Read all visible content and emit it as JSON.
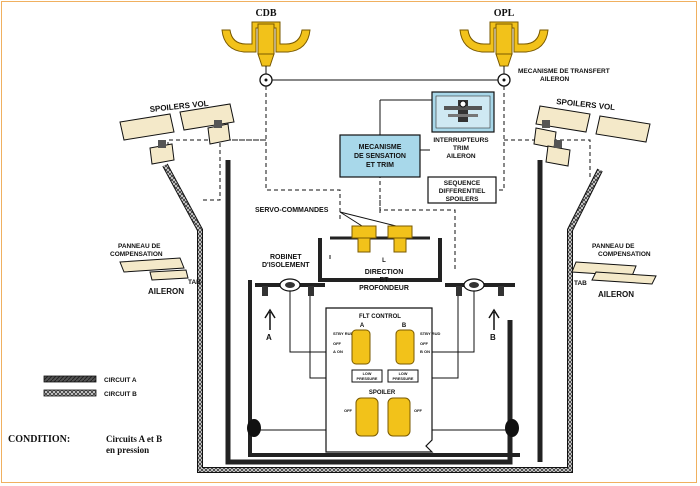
{
  "labels": {
    "cdb": "CDB",
    "opl": "OPL",
    "mecanisme_transfert_1": "MECANISME DE TRANSFERT",
    "mecanisme_transfert_2": "AILERON",
    "spoilers_vol_left": "SPOILERS VOL",
    "spoilers_vol_right": "SPOILERS VOL",
    "sensation_1": "MECANISME",
    "sensation_2": "DE SENSATION",
    "sensation_3": "ET TRIM",
    "interrupteurs_1": "INTERRUPTEURS",
    "interrupteurs_2": "TRIM",
    "interrupteurs_3": "AILERON",
    "sequence_1": "SEQUENCE",
    "sequence_2": "DIFFERENTIEL",
    "sequence_3": "SPOILERS",
    "servo": "SERVO-COMMANDES",
    "panneau_left_1": "PANNEAU DE",
    "panneau_left_2": "COMPENSATION",
    "panneau_right_1": "PANNEAU DE",
    "panneau_right_2": "COMPENSATION",
    "tab_left": "TAB",
    "tab_right": "TAB",
    "aileron_left": "AILERON",
    "aileron_right": "AILERON",
    "robinet_1": "ROBINET",
    "robinet_2": "D'ISOLEMENT",
    "direction_1": "DIRECTION",
    "direction_2": "ET",
    "direction_3": "PROFONDEUR",
    "circuit_a_marker": "A",
    "circuit_b_marker": "B",
    "l_marker": "L",
    "flt_control": "FLT CONTROL",
    "flt_a": "A",
    "flt_b": "B",
    "stby_rud_left": "STBY RUD",
    "stby_rud_right": "STBY RUD",
    "off_left": "OFF",
    "off_right": "OFF",
    "aon_left": "A ON",
    "bon_right": "B ON",
    "low_pressure_1a": "LOW",
    "low_pressure_1b": "PRESSURE",
    "low_pressure_2a": "LOW",
    "low_pressure_2b": "PRESSURE",
    "spoiler": "SPOILER",
    "off_spoiler_left": "OFF",
    "off_spoiler_right": "OFF",
    "legend_circuit_a": "CIRCUIT A",
    "legend_circuit_b": "CIRCUIT B",
    "condition_label": "CONDITION:",
    "condition_text_1": "Circuits A et B",
    "condition_text_2": "en pression"
  },
  "colors": {
    "yellow": "#f2c21a",
    "blue": "#a8d8ea",
    "beige": "#f4e9c9",
    "frame": "#f0b060"
  }
}
